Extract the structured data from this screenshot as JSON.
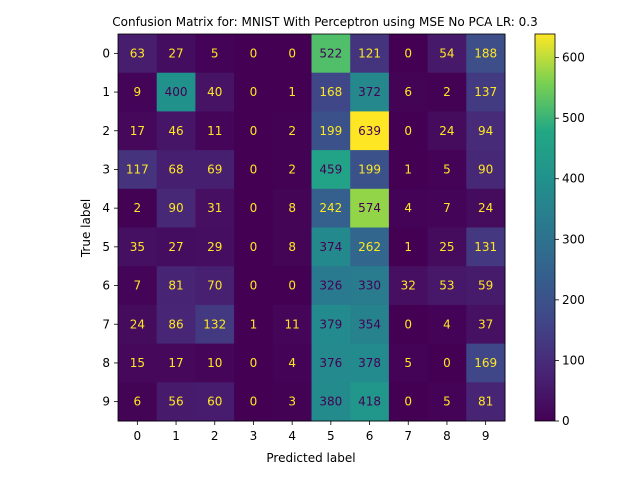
{
  "chart_data": {
    "type": "heatmap",
    "title": "Confusion Matrix for: MNIST With Perceptron using MSE No PCA LR: 0.3",
    "xlabel": "Predicted label",
    "ylabel": "True label",
    "x_categories": [
      "0",
      "1",
      "2",
      "3",
      "4",
      "5",
      "6",
      "7",
      "8",
      "9"
    ],
    "y_categories": [
      "0",
      "1",
      "2",
      "3",
      "4",
      "5",
      "6",
      "7",
      "8",
      "9"
    ],
    "matrix": [
      [
        63,
        27,
        5,
        0,
        0,
        522,
        121,
        0,
        54,
        188
      ],
      [
        9,
        400,
        40,
        0,
        1,
        168,
        372,
        6,
        2,
        137
      ],
      [
        17,
        46,
        11,
        0,
        2,
        199,
        639,
        0,
        24,
        94
      ],
      [
        117,
        68,
        69,
        0,
        2,
        459,
        199,
        1,
        5,
        90
      ],
      [
        2,
        90,
        31,
        0,
        8,
        242,
        574,
        4,
        7,
        24
      ],
      [
        35,
        27,
        29,
        0,
        8,
        374,
        262,
        1,
        25,
        131
      ],
      [
        7,
        81,
        70,
        0,
        0,
        326,
        330,
        32,
        53,
        59
      ],
      [
        24,
        86,
        132,
        1,
        11,
        379,
        354,
        0,
        4,
        37
      ],
      [
        15,
        17,
        10,
        0,
        4,
        376,
        378,
        5,
        0,
        169
      ],
      [
        6,
        56,
        60,
        0,
        3,
        380,
        418,
        0,
        5,
        81
      ]
    ],
    "colormap": "viridis",
    "value_range": [
      0,
      639
    ],
    "colorbar_ticks": [
      0,
      100,
      200,
      300,
      400,
      500,
      600
    ],
    "text_color_light": "#fde725",
    "text_color_dark": "#440154"
  }
}
